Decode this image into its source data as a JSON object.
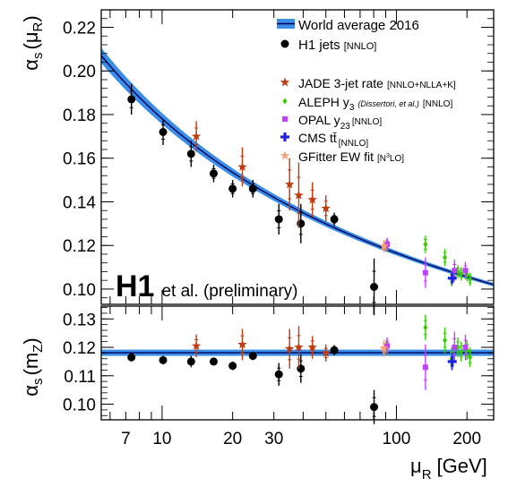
{
  "chart_data": [
    {
      "type": "scatter",
      "panel": "top",
      "xscale": "log",
      "xlim": [
        5.5,
        260
      ],
      "ylim": [
        0.093,
        0.228
      ],
      "ylabel_main": "α",
      "ylabel_sub": "s",
      "ylabel_paren": "(μ",
      "ylabel_paren_sub": "R",
      "ylabel_close": ")",
      "yticks": [
        "0.10",
        "0.12",
        "0.14",
        "0.16",
        "0.18",
        "0.20",
        "0.22"
      ],
      "ytick_values": [
        0.1,
        0.12,
        0.14,
        0.16,
        0.18,
        0.2,
        0.22
      ],
      "grid": false,
      "legend_position": "top-right",
      "watermark_bold": "H1",
      "watermark_text": "et al. (preliminary)",
      "world_average": {
        "label": "World average 2016",
        "alpha_mz": 0.1181,
        "mz": 91.1876,
        "uncertainty": 0.0011,
        "fill": "#3a8ee8",
        "line": "#00005a"
      },
      "series": [
        {
          "key": "h1",
          "name": "H1 jets",
          "tag": "[NNLO]",
          "color": "#000000",
          "marker": "circle",
          "points": [
            {
              "x": 7.4,
              "y": 0.187,
              "err": 0.007
            },
            {
              "x": 10.1,
              "y": 0.172,
              "err": 0.006
            },
            {
              "x": 13.3,
              "y": 0.162,
              "err": 0.006
            },
            {
              "x": 16.6,
              "y": 0.153,
              "err": 0.004
            },
            {
              "x": 20.0,
              "y": 0.146,
              "err": 0.004
            },
            {
              "x": 24.4,
              "y": 0.146,
              "err": 0.004
            },
            {
              "x": 31.5,
              "y": 0.132,
              "err": 0.007
            },
            {
              "x": 39.1,
              "y": 0.13,
              "err": 0.009
            },
            {
              "x": 54.3,
              "y": 0.132,
              "err": 0.003
            },
            {
              "x": 80.3,
              "y": 0.101,
              "err": 0.013
            }
          ]
        },
        {
          "key": "jade",
          "name": "JADE 3-jet rate",
          "tag": "[NNLO+NLLA+K]",
          "color": "#c03b10",
          "marker": "star",
          "points": [
            {
              "x": 14.0,
              "y": 0.17,
              "err": 0.007
            },
            {
              "x": 22.0,
              "y": 0.156,
              "err": 0.009
            },
            {
              "x": 35.0,
              "y": 0.148,
              "err": 0.012
            },
            {
              "x": 38.3,
              "y": 0.143,
              "err": 0.015
            },
            {
              "x": 43.8,
              "y": 0.141,
              "err": 0.008
            },
            {
              "x": 50.0,
              "y": 0.137,
              "err": 0.006
            }
          ]
        },
        {
          "key": "aleph",
          "name": "ALEPH y",
          "name_sub": "3",
          "name_note": "(Dissertori, et al.)",
          "tag": "[NNLO]",
          "color": "#33cc00",
          "marker": "diamond",
          "points": [
            {
              "x": 91.2,
              "y": 0.12,
              "err": 0.003
            },
            {
              "x": 133.0,
              "y": 0.1205,
              "err": 0.004
            },
            {
              "x": 161.0,
              "y": 0.1145,
              "err": 0.004
            },
            {
              "x": 172.0,
              "y": 0.1048,
              "err": 0.0035
            },
            {
              "x": 183.0,
              "y": 0.108,
              "err": 0.003
            },
            {
              "x": 189.0,
              "y": 0.107,
              "err": 0.003
            },
            {
              "x": 200.0,
              "y": 0.1065,
              "err": 0.003
            },
            {
              "x": 206.0,
              "y": 0.1045,
              "err": 0.003
            }
          ]
        },
        {
          "key": "opal",
          "name": "OPAL y",
          "name_sub": "23",
          "tag": "[NNLO]",
          "color": "#c040ff",
          "marker": "square",
          "points": [
            {
              "x": 91.2,
              "y": 0.1205,
              "err": 0.003
            },
            {
              "x": 133.0,
              "y": 0.1075,
              "err": 0.007
            },
            {
              "x": 177.0,
              "y": 0.1085,
              "err": 0.005
            },
            {
              "x": 197.0,
              "y": 0.1085,
              "err": 0.004
            }
          ]
        },
        {
          "key": "cms",
          "name": "CMS tt̄",
          "tag": "[NNLO]",
          "color": "#2020e0",
          "marker": "cross",
          "points": [
            {
              "x": 173.0,
              "y": 0.105,
              "err": 0.003
            }
          ]
        },
        {
          "key": "gfitter",
          "name": "GFitter EW fit",
          "tag_pre": "[N",
          "tag_sup": "3",
          "tag_post": "LO]",
          "color": "#f4a078",
          "marker": "star",
          "points": [
            {
              "x": 88.5,
              "y": 0.1197,
              "err": 0.003
            }
          ]
        }
      ]
    },
    {
      "type": "scatter",
      "panel": "bottom",
      "xscale": "log",
      "xlim": [
        5.5,
        260
      ],
      "ylim": [
        0.0945,
        0.1345
      ],
      "ylabel_main": "α",
      "ylabel_sub": "s",
      "ylabel_paren": "(m",
      "ylabel_paren_sub": "Z",
      "ylabel_close": ")",
      "yticks": [
        "0.10",
        "0.11",
        "0.12",
        "0.13"
      ],
      "ytick_values": [
        0.1,
        0.11,
        0.12,
        0.13
      ],
      "xticks": [
        "7",
        "10",
        "20",
        "30",
        "100",
        "200"
      ],
      "xtick_values": [
        7,
        10,
        20,
        30,
        100,
        200
      ],
      "xlabel_main": "μ",
      "xlabel_sub": "R",
      "xlabel_unit": "[GeV]",
      "band": {
        "center": 0.1181,
        "half_width": 0.0011
      },
      "series": [
        {
          "key": "h1",
          "color": "#000000",
          "marker": "circle",
          "points": [
            {
              "x": 7.4,
              "y": 0.1165,
              "err": 0.0015
            },
            {
              "x": 10.1,
              "y": 0.1155,
              "err": 0.0015
            },
            {
              "x": 13.3,
              "y": 0.115,
              "err": 0.002
            },
            {
              "x": 16.6,
              "y": 0.115,
              "err": 0.0012
            },
            {
              "x": 20.0,
              "y": 0.1135,
              "err": 0.0015
            },
            {
              "x": 24.4,
              "y": 0.117,
              "err": 0.0015
            },
            {
              "x": 31.5,
              "y": 0.1105,
              "err": 0.004
            },
            {
              "x": 39.1,
              "y": 0.1125,
              "err": 0.005
            },
            {
              "x": 54.3,
              "y": 0.119,
              "err": 0.0018
            },
            {
              "x": 80.3,
              "y": 0.099,
              "err": 0.006
            }
          ]
        },
        {
          "key": "jade",
          "color": "#c03b10",
          "marker": "star",
          "points": [
            {
              "x": 14.0,
              "y": 0.1205,
              "err": 0.004
            },
            {
              "x": 22.0,
              "y": 0.121,
              "err": 0.0055
            },
            {
              "x": 35.0,
              "y": 0.1195,
              "err": 0.007
            },
            {
              "x": 38.3,
              "y": 0.12,
              "err": 0.0075
            },
            {
              "x": 43.8,
              "y": 0.12,
              "err": 0.004
            },
            {
              "x": 50.0,
              "y": 0.118,
              "err": 0.003
            }
          ]
        },
        {
          "key": "aleph",
          "color": "#33cc00",
          "marker": "diamond",
          "points": [
            {
              "x": 91.2,
              "y": 0.12,
              "err": 0.003
            },
            {
              "x": 133.0,
              "y": 0.127,
              "err": 0.0045
            },
            {
              "x": 161.0,
              "y": 0.1225,
              "err": 0.0045
            },
            {
              "x": 172.0,
              "y": 0.116,
              "err": 0.004
            },
            {
              "x": 183.0,
              "y": 0.12,
              "err": 0.0035
            },
            {
              "x": 189.0,
              "y": 0.1185,
              "err": 0.0035
            },
            {
              "x": 200.0,
              "y": 0.119,
              "err": 0.0035
            },
            {
              "x": 206.0,
              "y": 0.1165,
              "err": 0.0035
            }
          ]
        },
        {
          "key": "opal",
          "color": "#c040ff",
          "marker": "square",
          "points": [
            {
              "x": 91.2,
              "y": 0.1205,
              "err": 0.003
            },
            {
              "x": 133.0,
              "y": 0.113,
              "err": 0.008
            },
            {
              "x": 177.0,
              "y": 0.12,
              "err": 0.0055
            },
            {
              "x": 197.0,
              "y": 0.12,
              "err": 0.0045
            }
          ]
        },
        {
          "key": "cms",
          "color": "#2020e0",
          "marker": "cross",
          "points": [
            {
              "x": 173.0,
              "y": 0.115,
              "err": 0.003
            }
          ]
        },
        {
          "key": "gfitter",
          "color": "#f4a078",
          "marker": "star",
          "points": [
            {
              "x": 88.5,
              "y": 0.1197,
              "err": 0.003
            }
          ]
        }
      ]
    }
  ]
}
